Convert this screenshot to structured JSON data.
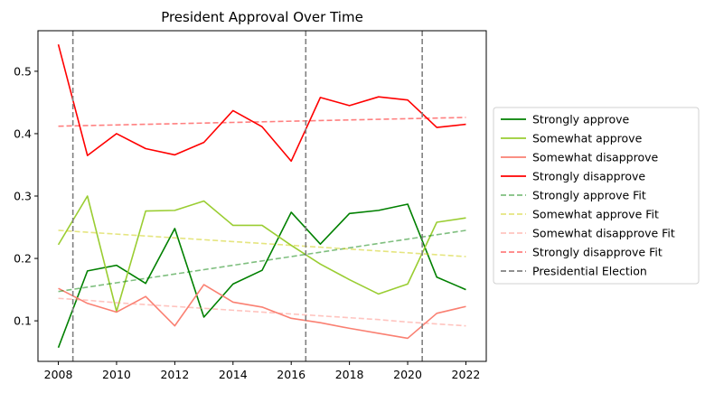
{
  "chart_data": {
    "type": "line",
    "title": "President Approval Over Time",
    "xlabel": "",
    "ylabel": "",
    "xlim": [
      2007.3,
      2022.7
    ],
    "ylim": [
      0.035,
      0.565
    ],
    "x_ticks": [
      2008,
      2010,
      2012,
      2014,
      2016,
      2018,
      2020,
      2022
    ],
    "y_ticks": [
      0.1,
      0.2,
      0.3,
      0.4,
      0.5
    ],
    "y_tick_labels": [
      "0.1",
      "0.2",
      "0.3",
      "0.4",
      "0.5"
    ],
    "grid": false,
    "legend_position": "center-right outside",
    "x": [
      2008,
      2009,
      2010,
      2011,
      2012,
      2013,
      2014,
      2015,
      2016,
      2017,
      2018,
      2019,
      2020,
      2021,
      2022
    ],
    "series": [
      {
        "name": "Strongly approve",
        "color": "#008000",
        "style": "solid",
        "values": [
          0.057,
          0.18,
          0.189,
          0.16,
          0.248,
          0.106,
          0.159,
          0.181,
          0.274,
          0.223,
          0.272,
          0.277,
          0.287,
          0.17,
          0.15
        ]
      },
      {
        "name": "Somewhat approve",
        "color": "#9acd32",
        "style": "solid",
        "values": [
          0.222,
          0.3,
          0.115,
          0.276,
          0.277,
          0.292,
          0.253,
          0.253,
          0.221,
          0.191,
          0.166,
          0.143,
          0.159,
          0.258,
          0.265
        ]
      },
      {
        "name": "Somewhat disapprove",
        "color": "#fa8072",
        "style": "solid",
        "values": [
          0.152,
          0.128,
          0.114,
          0.139,
          0.092,
          0.158,
          0.13,
          0.122,
          0.104,
          0.097,
          0.088,
          0.08,
          0.072,
          0.112,
          0.123
        ]
      },
      {
        "name": "Strongly disapprove",
        "color": "#ff0000",
        "style": "solid",
        "values": [
          0.543,
          0.365,
          0.4,
          0.376,
          0.366,
          0.386,
          0.437,
          0.411,
          0.356,
          0.458,
          0.445,
          0.459,
          0.454,
          0.41,
          0.415
        ]
      },
      {
        "name": "Strongly approve Fit",
        "color": "#008000",
        "style": "dashed",
        "opacity": 0.5,
        "values": [
          0.147,
          0.154,
          0.161,
          0.168,
          0.175,
          0.182,
          0.189,
          0.196,
          0.203,
          0.21,
          0.217,
          0.224,
          0.231,
          0.238,
          0.245
        ]
      },
      {
        "name": "Somewhat approve Fit",
        "color": "#cccc00",
        "style": "dashed",
        "opacity": 0.5,
        "values": [
          0.245,
          0.242,
          0.239,
          0.236,
          0.233,
          0.23,
          0.227,
          0.224,
          0.221,
          0.218,
          0.215,
          0.212,
          0.209,
          0.206,
          0.203
        ]
      },
      {
        "name": "Somewhat disapprove Fit",
        "color": "#ff8a80",
        "style": "dashed",
        "opacity": 0.5,
        "values": [
          0.136,
          0.133,
          0.129,
          0.126,
          0.123,
          0.12,
          0.117,
          0.114,
          0.111,
          0.108,
          0.105,
          0.102,
          0.098,
          0.095,
          0.092
        ]
      },
      {
        "name": "Strongly disapprove Fit",
        "color": "#ff0000",
        "style": "dashed",
        "opacity": 0.5,
        "values": [
          0.412,
          0.413,
          0.414,
          0.415,
          0.416,
          0.417,
          0.418,
          0.419,
          0.42,
          0.421,
          0.422,
          0.423,
          0.424,
          0.425,
          0.426
        ]
      }
    ],
    "vlines": {
      "name": "Presidential Election",
      "color": "#808080",
      "style": "dashed",
      "x": [
        2008.5,
        2016.5,
        2020.5
      ]
    }
  }
}
